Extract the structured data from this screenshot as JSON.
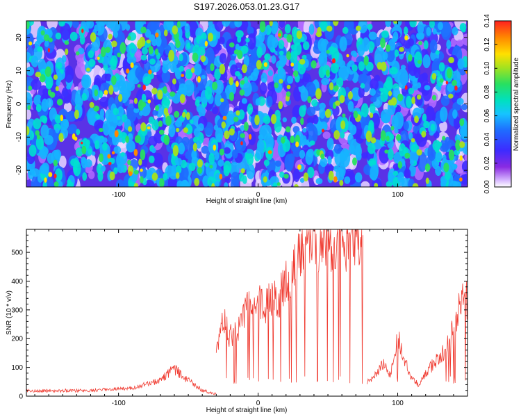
{
  "title": "S197.2026.053.01.23.G17",
  "chart_data": [
    {
      "type": "heatmap",
      "xlabel": "Height of straight line (km)",
      "ylabel": "Frequency (Hz)",
      "xlim": [
        -166,
        150
      ],
      "ylim": [
        -25,
        25
      ],
      "xticks": [
        -100,
        0,
        100
      ],
      "yticks": [
        -20,
        -10,
        0,
        10,
        20
      ],
      "colorbar": {
        "label": "Normalized spectral amplitude",
        "range": [
          0,
          0.14
        ],
        "ticks": [
          "0.00",
          "0.02",
          "0.04",
          "0.06",
          "0.08",
          "0.10",
          "0.12",
          "0.14"
        ]
      },
      "colors": [
        "#ffffff",
        "#e9d8ff",
        "#b36bff",
        "#8a2be2",
        "#3d2bff",
        "#1f6bff",
        "#16b4ff",
        "#00e0d0",
        "#28e060",
        "#a6e21e",
        "#ffe000",
        "#ff8800",
        "#ff2020"
      ]
    },
    {
      "type": "line",
      "xlabel": "Height of straight line (km)",
      "ylabel": "SNR (10 * v/v)",
      "xlim": [
        -166,
        150
      ],
      "ylim": [
        0,
        580
      ],
      "xticks": [
        -100,
        0,
        100
      ],
      "yticks": [
        0,
        100,
        200,
        300,
        400,
        500
      ],
      "line_color": "#f03c32",
      "series": [
        {
          "name": "SNR",
          "segments": [
            {
              "x": [
                -166,
                -120,
                -90,
                -70,
                -60,
                -50,
                -40,
                -30
              ],
              "y": [
                18,
                20,
                28,
                55,
                95,
                55,
                20,
                8
              ]
            },
            {
              "x": [
                -30,
                -25,
                -20,
                -15,
                -10,
                -5,
                0,
                5,
                10,
                15,
                20,
                25,
                30,
                35,
                40,
                45,
                50,
                55,
                60,
                65,
                70,
                75
              ],
              "y": [
                150,
                260,
                210,
                240,
                280,
                320,
                330,
                300,
                360,
                340,
                400,
                430,
                480,
                560,
                550,
                540,
                560,
                520,
                530,
                540,
                550,
                560
              ]
            },
            {
              "x": [
                78,
                85,
                90,
                95,
                100,
                105,
                110,
                115,
                120,
                125,
                130,
                135,
                140,
                145,
                150
              ],
              "y": [
                50,
                80,
                110,
                70,
                210,
                120,
                60,
                40,
                75,
                110,
                140,
                170,
                230,
                320,
                340
              ]
            }
          ]
        }
      ]
    }
  ]
}
